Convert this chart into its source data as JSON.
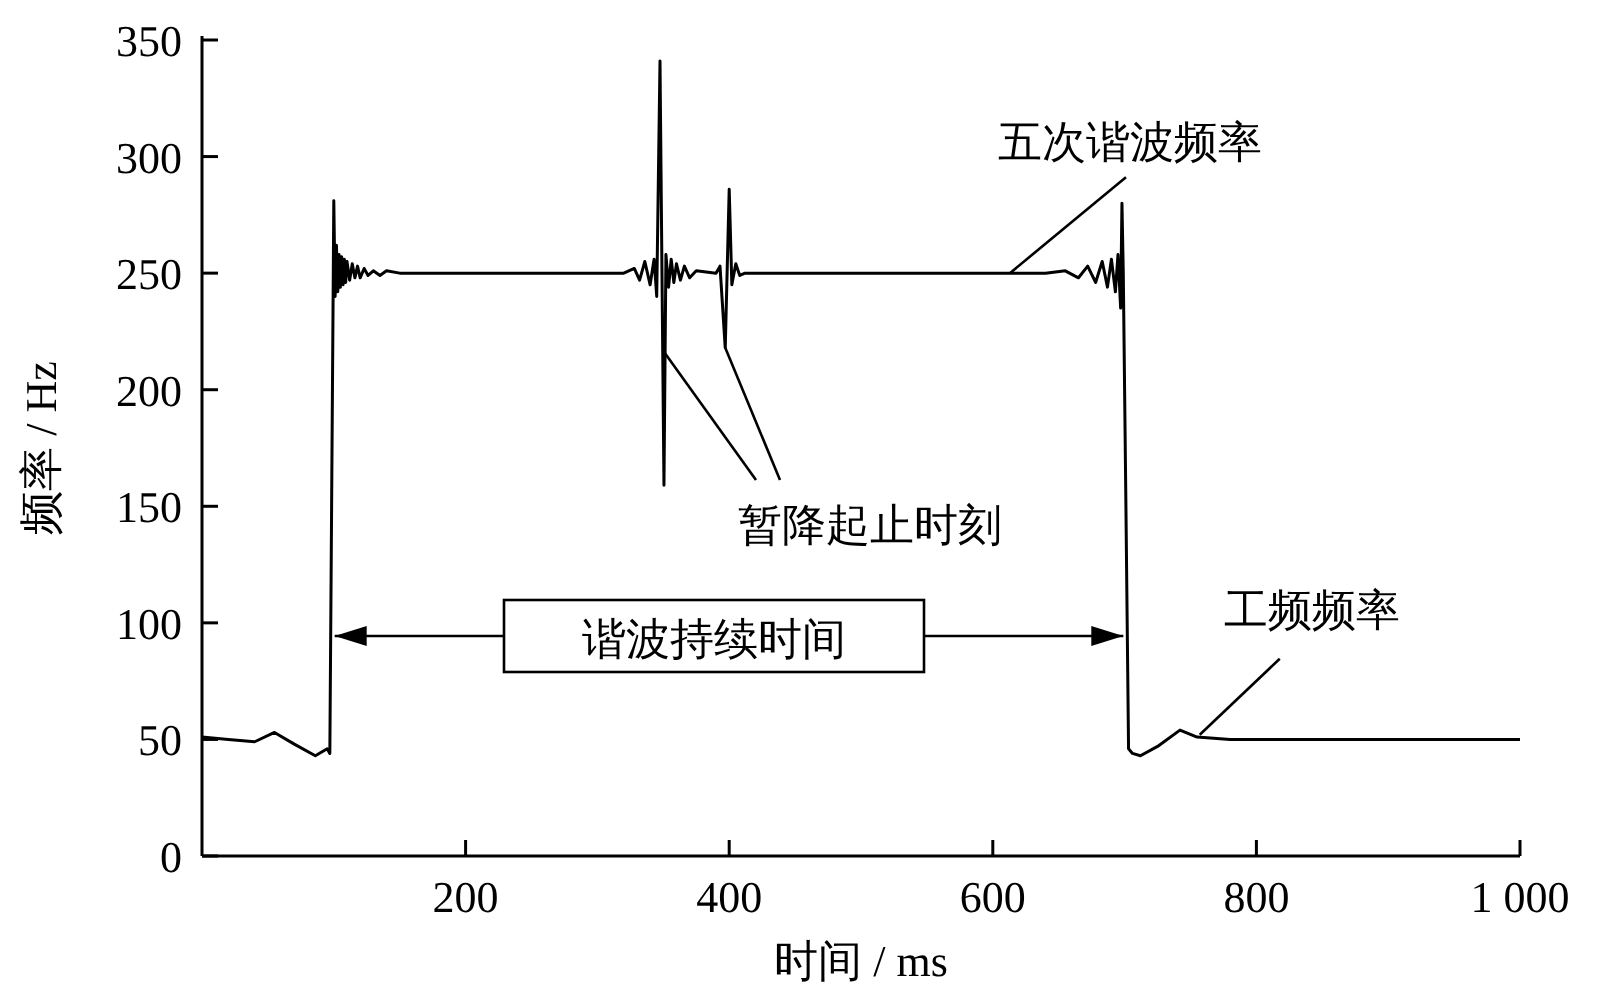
{
  "chart_data": {
    "type": "line",
    "xlabel": "时间 / ms",
    "ylabel": "频率 / Hz",
    "xlim": [
      0,
      1000
    ],
    "ylim": [
      0,
      350
    ],
    "xticks": [
      200,
      400,
      600,
      800,
      {
        "value": 1000,
        "label": "1 000"
      }
    ],
    "yticks": [
      0,
      50,
      100,
      150,
      200,
      250,
      300,
      350
    ],
    "grid": false,
    "marker": "none",
    "line_style": "solid",
    "series": [
      {
        "color": "#000000",
        "x": [
          0,
          20,
          40,
          55,
          70,
          86,
          95,
          97,
          100,
          101,
          102,
          103,
          104,
          105,
          106,
          107,
          108,
          109,
          110,
          112,
          114,
          116,
          118,
          120,
          123,
          126,
          130,
          135,
          140,
          150,
          320,
          328,
          332,
          336,
          340,
          343,
          345,
          347.5,
          350.5,
          352,
          354,
          356,
          358,
          360,
          363,
          366,
          370,
          375,
          390,
          393,
          397,
          400,
          402,
          405,
          408,
          412,
          640,
          655,
          665,
          672,
          678,
          683,
          687,
          690,
          693,
          695,
          697,
          698,
          699,
          701,
          703,
          706,
          712,
          725,
          742,
          755,
          780,
          1000
        ],
        "values": [
          51,
          50,
          49,
          53,
          48,
          43,
          46,
          44,
          281,
          240,
          262,
          242,
          258,
          244,
          257,
          245,
          256,
          246,
          255,
          247,
          254,
          248,
          253,
          248,
          252,
          249,
          251,
          249,
          251,
          250,
          250,
          252,
          247,
          255,
          245,
          256,
          240,
          341,
          159,
          258,
          244,
          256,
          246,
          254,
          247,
          253,
          248,
          251,
          250,
          253,
          218,
          286,
          245,
          254,
          249,
          250,
          250,
          251,
          248,
          253,
          246,
          255,
          244,
          256,
          242,
          258,
          235,
          280,
          250,
          150,
          46,
          44,
          43,
          47,
          54,
          51,
          50,
          50
        ]
      }
    ],
    "annotations": [
      {
        "text": "五次谐波频率",
        "x": 613,
        "y": 250
      },
      {
        "text": "暂降起止时刻",
        "x": 349.5,
        "y": 217
      },
      "谐波持续时间",
      {
        "text": "工频频率",
        "x": 757,
        "y": 52
      }
    ]
  }
}
